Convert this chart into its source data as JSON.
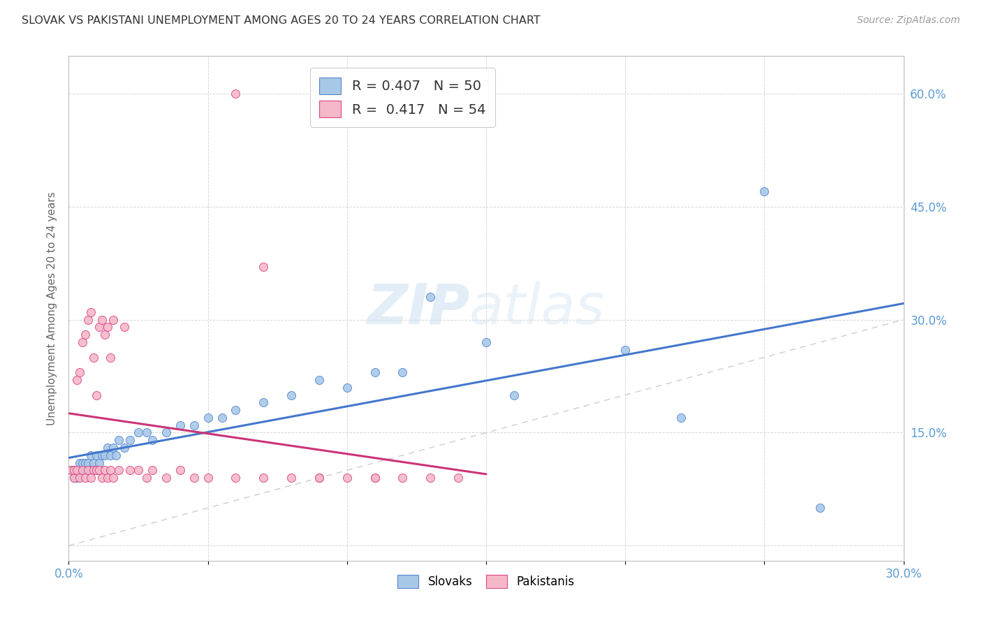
{
  "title": "SLOVAK VS PAKISTANI UNEMPLOYMENT AMONG AGES 20 TO 24 YEARS CORRELATION CHART",
  "source": "Source: ZipAtlas.com",
  "ylabel": "Unemployment Among Ages 20 to 24 years",
  "xlim": [
    0.0,
    0.3
  ],
  "ylim": [
    -0.02,
    0.65
  ],
  "xticks": [
    0.0,
    0.05,
    0.1,
    0.15,
    0.2,
    0.25,
    0.3
  ],
  "xtick_labels": [
    "0.0%",
    "",
    "",
    "",
    "",
    "",
    "30.0%"
  ],
  "yticks": [
    0.0,
    0.15,
    0.3,
    0.45,
    0.6
  ],
  "ytick_labels": [
    "",
    "15.0%",
    "30.0%",
    "45.0%",
    "60.0%"
  ],
  "slovak_color": "#a8c8e8",
  "pakistani_color": "#f4b8c8",
  "slovak_edge_color": "#5588cc",
  "pakistani_edge_color": "#dd4488",
  "trendline_slovak_color": "#4477cc",
  "trendline_pakistani_color": "#cc3377",
  "diagonal_color": "#cccccc",
  "watermark_zip": "ZIP",
  "watermark_atlas": "atlas",
  "slovak_x": [
    0.001,
    0.002,
    0.002,
    0.003,
    0.003,
    0.004,
    0.004,
    0.005,
    0.005,
    0.006,
    0.006,
    0.007,
    0.007,
    0.008,
    0.008,
    0.009,
    0.01,
    0.01,
    0.011,
    0.012,
    0.013,
    0.014,
    0.015,
    0.016,
    0.017,
    0.018,
    0.02,
    0.022,
    0.025,
    0.028,
    0.03,
    0.035,
    0.04,
    0.045,
    0.05,
    0.055,
    0.06,
    0.07,
    0.08,
    0.09,
    0.1,
    0.11,
    0.12,
    0.13,
    0.15,
    0.16,
    0.2,
    0.22,
    0.25,
    0.27
  ],
  "slovak_y": [
    0.1,
    0.09,
    0.1,
    0.09,
    0.1,
    0.1,
    0.11,
    0.1,
    0.11,
    0.1,
    0.11,
    0.1,
    0.11,
    0.1,
    0.12,
    0.11,
    0.1,
    0.12,
    0.11,
    0.12,
    0.12,
    0.13,
    0.12,
    0.13,
    0.12,
    0.14,
    0.13,
    0.14,
    0.15,
    0.15,
    0.14,
    0.15,
    0.16,
    0.16,
    0.17,
    0.17,
    0.18,
    0.19,
    0.2,
    0.22,
    0.21,
    0.23,
    0.23,
    0.33,
    0.27,
    0.2,
    0.26,
    0.17,
    0.47,
    0.05
  ],
  "pakistani_x": [
    0.001,
    0.002,
    0.002,
    0.003,
    0.003,
    0.004,
    0.004,
    0.005,
    0.005,
    0.006,
    0.006,
    0.007,
    0.007,
    0.008,
    0.008,
    0.009,
    0.009,
    0.01,
    0.01,
    0.011,
    0.011,
    0.012,
    0.012,
    0.013,
    0.013,
    0.014,
    0.014,
    0.015,
    0.015,
    0.016,
    0.016,
    0.018,
    0.02,
    0.022,
    0.025,
    0.028,
    0.03,
    0.035,
    0.04,
    0.045,
    0.05,
    0.06,
    0.07,
    0.08,
    0.09,
    0.1,
    0.11,
    0.12,
    0.13,
    0.14,
    0.06,
    0.07,
    0.09,
    0.11
  ],
  "pakistani_y": [
    0.1,
    0.09,
    0.1,
    0.22,
    0.1,
    0.09,
    0.23,
    0.1,
    0.27,
    0.09,
    0.28,
    0.1,
    0.3,
    0.09,
    0.31,
    0.1,
    0.25,
    0.1,
    0.2,
    0.1,
    0.29,
    0.09,
    0.3,
    0.1,
    0.28,
    0.09,
    0.29,
    0.1,
    0.25,
    0.09,
    0.3,
    0.1,
    0.29,
    0.1,
    0.1,
    0.09,
    0.1,
    0.09,
    0.1,
    0.09,
    0.09,
    0.09,
    0.09,
    0.09,
    0.09,
    0.09,
    0.09,
    0.09,
    0.09,
    0.09,
    0.6,
    0.37,
    0.09,
    0.09
  ],
  "legend1_text": "R = 0.407   N = 50",
  "legend2_text": "R =  0.417   N = 54",
  "bottom_legend": [
    "Slovaks",
    "Pakistanis"
  ]
}
